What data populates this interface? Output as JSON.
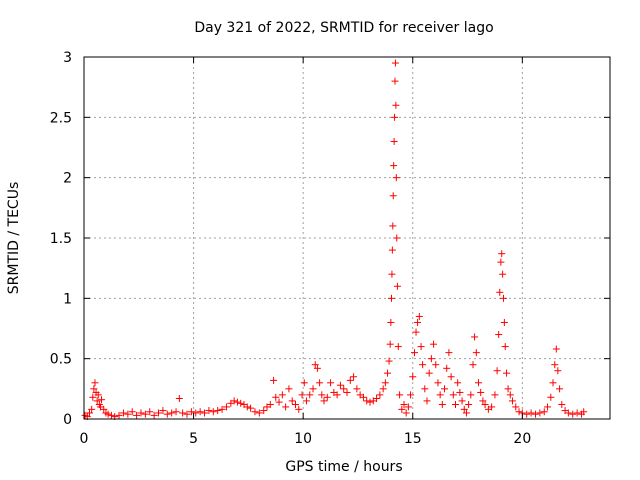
{
  "chart_data": {
    "type": "scatter",
    "title": "Day 321 of 2022, SRMTID for receiver lago",
    "xlabel": "GPS time / hours",
    "ylabel": "SRMTID / TECUs",
    "xlim": [
      0,
      24
    ],
    "ylim": [
      0,
      3
    ],
    "xticks": [
      0,
      5,
      10,
      15,
      20
    ],
    "yticks": [
      0,
      0.5,
      1,
      1.5,
      2,
      2.5,
      3
    ],
    "xtick_labels": [
      "0",
      "5",
      "10",
      "15",
      "20"
    ],
    "ytick_labels": [
      "0",
      "0.5",
      "1",
      "1.5",
      "2",
      "2.5",
      "3"
    ],
    "grid": true,
    "marker": "+",
    "color": "#ff0000",
    "series": [
      {
        "name": "SRMTID",
        "points": [
          [
            0.05,
            0.03
          ],
          [
            0.15,
            0.02
          ],
          [
            0.25,
            0.05
          ],
          [
            0.35,
            0.08
          ],
          [
            0.4,
            0.18
          ],
          [
            0.45,
            0.25
          ],
          [
            0.5,
            0.3
          ],
          [
            0.55,
            0.22
          ],
          [
            0.6,
            0.15
          ],
          [
            0.65,
            0.2
          ],
          [
            0.7,
            0.12
          ],
          [
            0.75,
            0.1
          ],
          [
            0.8,
            0.16
          ],
          [
            0.9,
            0.08
          ],
          [
            1.0,
            0.05
          ],
          [
            1.1,
            0.04
          ],
          [
            1.25,
            0.03
          ],
          [
            1.4,
            0.02
          ],
          [
            1.6,
            0.03
          ],
          [
            1.8,
            0.05
          ],
          [
            2.0,
            0.04
          ],
          [
            2.2,
            0.06
          ],
          [
            2.4,
            0.03
          ],
          [
            2.6,
            0.05
          ],
          [
            2.8,
            0.04
          ],
          [
            3.0,
            0.06
          ],
          [
            3.2,
            0.03
          ],
          [
            3.4,
            0.05
          ],
          [
            3.6,
            0.07
          ],
          [
            3.8,
            0.04
          ],
          [
            4.0,
            0.05
          ],
          [
            4.2,
            0.06
          ],
          [
            4.35,
            0.17
          ],
          [
            4.5,
            0.05
          ],
          [
            4.7,
            0.04
          ],
          [
            4.9,
            0.06
          ],
          [
            5.1,
            0.05
          ],
          [
            5.3,
            0.06
          ],
          [
            5.5,
            0.05
          ],
          [
            5.7,
            0.07
          ],
          [
            5.9,
            0.06
          ],
          [
            6.1,
            0.07
          ],
          [
            6.3,
            0.08
          ],
          [
            6.5,
            0.1
          ],
          [
            6.7,
            0.13
          ],
          [
            6.85,
            0.15
          ],
          [
            7.0,
            0.14
          ],
          [
            7.15,
            0.13
          ],
          [
            7.3,
            0.12
          ],
          [
            7.45,
            0.1
          ],
          [
            7.6,
            0.09
          ],
          [
            7.8,
            0.06
          ],
          [
            8.0,
            0.05
          ],
          [
            8.2,
            0.07
          ],
          [
            8.35,
            0.1
          ],
          [
            8.5,
            0.12
          ],
          [
            8.65,
            0.32
          ],
          [
            8.75,
            0.18
          ],
          [
            8.9,
            0.14
          ],
          [
            9.05,
            0.2
          ],
          [
            9.2,
            0.1
          ],
          [
            9.35,
            0.25
          ],
          [
            9.5,
            0.15
          ],
          [
            9.65,
            0.12
          ],
          [
            9.8,
            0.08
          ],
          [
            9.95,
            0.2
          ],
          [
            10.05,
            0.3
          ],
          [
            10.15,
            0.15
          ],
          [
            10.3,
            0.2
          ],
          [
            10.45,
            0.25
          ],
          [
            10.55,
            0.45
          ],
          [
            10.65,
            0.42
          ],
          [
            10.75,
            0.3
          ],
          [
            10.85,
            0.2
          ],
          [
            10.95,
            0.15
          ],
          [
            11.1,
            0.18
          ],
          [
            11.25,
            0.3
          ],
          [
            11.4,
            0.22
          ],
          [
            11.55,
            0.2
          ],
          [
            11.7,
            0.28
          ],
          [
            11.85,
            0.25
          ],
          [
            12.0,
            0.22
          ],
          [
            12.15,
            0.32
          ],
          [
            12.3,
            0.35
          ],
          [
            12.45,
            0.25
          ],
          [
            12.6,
            0.2
          ],
          [
            12.75,
            0.18
          ],
          [
            12.9,
            0.15
          ],
          [
            13.05,
            0.14
          ],
          [
            13.2,
            0.15
          ],
          [
            13.35,
            0.17
          ],
          [
            13.5,
            0.2
          ],
          [
            13.65,
            0.25
          ],
          [
            13.75,
            0.3
          ],
          [
            13.85,
            0.38
          ],
          [
            13.92,
            0.48
          ],
          [
            13.97,
            0.62
          ],
          [
            14.0,
            0.8
          ],
          [
            14.03,
            1.0
          ],
          [
            14.05,
            1.2
          ],
          [
            14.07,
            1.4
          ],
          [
            14.09,
            1.6
          ],
          [
            14.11,
            1.85
          ],
          [
            14.13,
            2.1
          ],
          [
            14.15,
            2.3
          ],
          [
            14.17,
            2.5
          ],
          [
            14.19,
            2.8
          ],
          [
            14.21,
            2.95
          ],
          [
            14.23,
            2.6
          ],
          [
            14.25,
            2.0
          ],
          [
            14.27,
            1.5
          ],
          [
            14.3,
            1.1
          ],
          [
            14.34,
            0.6
          ],
          [
            14.4,
            0.2
          ],
          [
            14.5,
            0.08
          ],
          [
            14.6,
            0.12
          ],
          [
            14.7,
            0.05
          ],
          [
            14.8,
            0.1
          ],
          [
            14.9,
            0.2
          ],
          [
            15.0,
            0.35
          ],
          [
            15.08,
            0.55
          ],
          [
            15.15,
            0.72
          ],
          [
            15.22,
            0.8
          ],
          [
            15.3,
            0.85
          ],
          [
            15.38,
            0.6
          ],
          [
            15.45,
            0.45
          ],
          [
            15.55,
            0.25
          ],
          [
            15.65,
            0.15
          ],
          [
            15.75,
            0.38
          ],
          [
            15.85,
            0.5
          ],
          [
            15.95,
            0.62
          ],
          [
            16.05,
            0.45
          ],
          [
            16.15,
            0.3
          ],
          [
            16.25,
            0.2
          ],
          [
            16.35,
            0.12
          ],
          [
            16.45,
            0.25
          ],
          [
            16.55,
            0.42
          ],
          [
            16.65,
            0.55
          ],
          [
            16.75,
            0.35
          ],
          [
            16.85,
            0.2
          ],
          [
            16.95,
            0.12
          ],
          [
            17.05,
            0.3
          ],
          [
            17.15,
            0.22
          ],
          [
            17.25,
            0.15
          ],
          [
            17.35,
            0.08
          ],
          [
            17.45,
            0.05
          ],
          [
            17.55,
            0.12
          ],
          [
            17.65,
            0.2
          ],
          [
            17.75,
            0.45
          ],
          [
            17.82,
            0.68
          ],
          [
            17.9,
            0.55
          ],
          [
            18.0,
            0.3
          ],
          [
            18.1,
            0.22
          ],
          [
            18.2,
            0.15
          ],
          [
            18.3,
            0.12
          ],
          [
            18.45,
            0.08
          ],
          [
            18.6,
            0.1
          ],
          [
            18.75,
            0.2
          ],
          [
            18.85,
            0.4
          ],
          [
            18.92,
            0.7
          ],
          [
            18.97,
            1.05
          ],
          [
            19.02,
            1.3
          ],
          [
            19.06,
            1.37
          ],
          [
            19.1,
            1.2
          ],
          [
            19.14,
            1.0
          ],
          [
            19.18,
            0.8
          ],
          [
            19.22,
            0.6
          ],
          [
            19.28,
            0.38
          ],
          [
            19.35,
            0.25
          ],
          [
            19.45,
            0.2
          ],
          [
            19.55,
            0.15
          ],
          [
            19.7,
            0.1
          ],
          [
            19.85,
            0.06
          ],
          [
            20.0,
            0.05
          ],
          [
            20.2,
            0.04
          ],
          [
            20.4,
            0.05
          ],
          [
            20.6,
            0.04
          ],
          [
            20.8,
            0.05
          ],
          [
            21.0,
            0.06
          ],
          [
            21.15,
            0.1
          ],
          [
            21.3,
            0.18
          ],
          [
            21.4,
            0.3
          ],
          [
            21.48,
            0.45
          ],
          [
            21.55,
            0.58
          ],
          [
            21.62,
            0.4
          ],
          [
            21.7,
            0.25
          ],
          [
            21.8,
            0.12
          ],
          [
            21.95,
            0.07
          ],
          [
            22.1,
            0.05
          ],
          [
            22.3,
            0.04
          ],
          [
            22.5,
            0.05
          ],
          [
            22.7,
            0.04
          ],
          [
            22.8,
            0.06
          ]
        ]
      }
    ]
  }
}
